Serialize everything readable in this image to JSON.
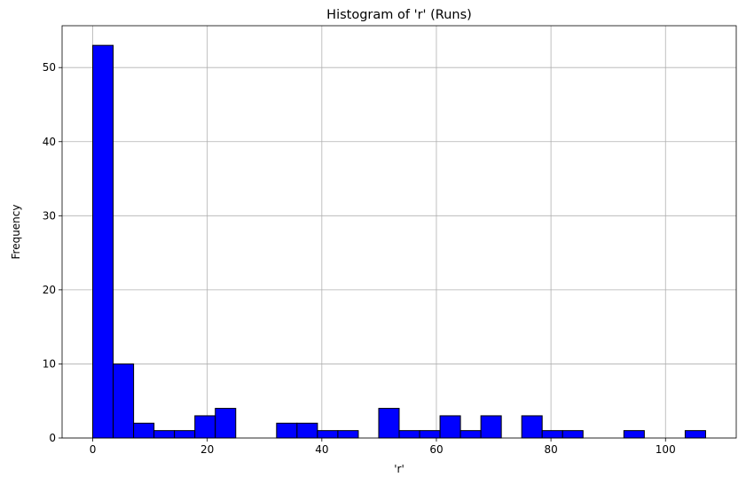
{
  "chart_data": {
    "type": "bar",
    "title": "Histogram of 'r' (Runs)",
    "xlabel": "'r'",
    "ylabel": "Frequency",
    "bin_width": 3.5667,
    "bins": [
      {
        "start": 0,
        "count": 53
      },
      {
        "start": 3.5667,
        "count": 10
      },
      {
        "start": 7.1333,
        "count": 2
      },
      {
        "start": 10.7,
        "count": 1
      },
      {
        "start": 14.2667,
        "count": 1
      },
      {
        "start": 17.8333,
        "count": 3
      },
      {
        "start": 21.4,
        "count": 4
      },
      {
        "start": 24.9667,
        "count": 0
      },
      {
        "start": 28.5333,
        "count": 0
      },
      {
        "start": 32.1,
        "count": 2
      },
      {
        "start": 35.6667,
        "count": 2
      },
      {
        "start": 39.2333,
        "count": 1
      },
      {
        "start": 42.8,
        "count": 1
      },
      {
        "start": 46.3667,
        "count": 0
      },
      {
        "start": 49.9333,
        "count": 4
      },
      {
        "start": 53.5,
        "count": 1
      },
      {
        "start": 57.0667,
        "count": 1
      },
      {
        "start": 60.6333,
        "count": 3
      },
      {
        "start": 64.2,
        "count": 1
      },
      {
        "start": 67.7667,
        "count": 3
      },
      {
        "start": 71.3333,
        "count": 0
      },
      {
        "start": 74.9,
        "count": 3
      },
      {
        "start": 78.4667,
        "count": 1
      },
      {
        "start": 82.0333,
        "count": 1
      },
      {
        "start": 85.6,
        "count": 0
      },
      {
        "start": 89.1667,
        "count": 0
      },
      {
        "start": 92.7333,
        "count": 1
      },
      {
        "start": 96.3,
        "count": 0
      },
      {
        "start": 99.8667,
        "count": 0
      },
      {
        "start": 103.4333,
        "count": 1
      }
    ],
    "xlim": [
      -5.35,
      112.35
    ],
    "ylim": [
      0,
      55.65
    ],
    "xticks": [
      0,
      20,
      40,
      60,
      80,
      100
    ],
    "yticks": [
      0,
      10,
      20,
      30,
      40,
      50
    ],
    "grid": true,
    "bar_color": "#0000ff",
    "edge_color": "#000000",
    "grid_color": "#b0b0b0"
  }
}
